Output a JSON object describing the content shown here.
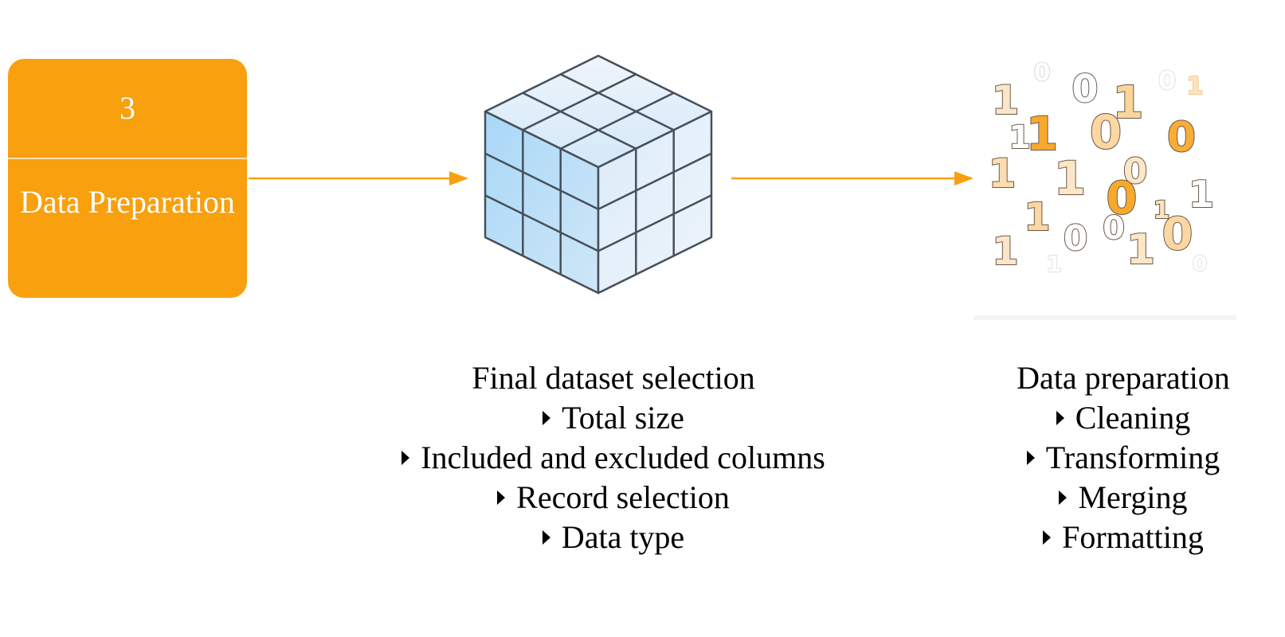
{
  "step": {
    "number": "3",
    "title": "Data Preparation",
    "color": "#f9a00e"
  },
  "connector_color": "#f9a00e",
  "left_panel": {
    "icon": "data-cube-icon",
    "heading": "Final dataset selection",
    "items": [
      "Total size",
      "Included and excluded columns",
      "Record selection",
      "Data type"
    ]
  },
  "right_panel": {
    "icon": "binary-digits-icon",
    "heading": "Data preparation",
    "items": [
      "Cleaning",
      "Transforming",
      "Merging",
      "Formatting"
    ]
  },
  "binary_digits": [
    "1",
    "0",
    "0",
    "1",
    "0",
    "1",
    "1",
    "0",
    "0",
    "1",
    "1",
    "0",
    "0",
    "1",
    "1",
    "0",
    "1",
    "1",
    "0",
    "1",
    "0",
    "0",
    "1",
    "1"
  ]
}
